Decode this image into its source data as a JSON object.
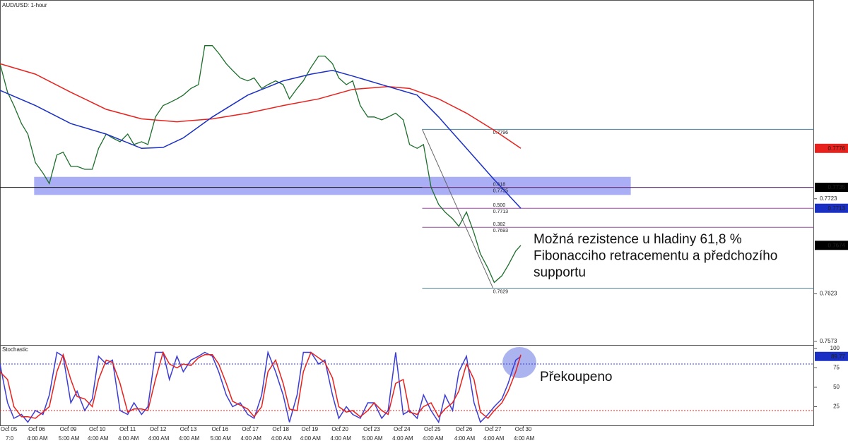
{
  "chart_data": [
    {
      "type": "line",
      "title": "AUD/USD: 1-hour",
      "xlim": [
        0,
        644
      ],
      "ylim": [
        0.757,
        0.7932
      ],
      "yticks": [
        0.7573,
        0.7623,
        0.7723
      ],
      "series": [
        {
          "color": "#1b6e2a",
          "x": [
            0,
            6,
            11,
            17,
            22,
            28,
            34,
            39,
            45,
            50,
            56,
            61,
            67,
            73,
            78,
            84,
            89,
            95,
            101,
            106,
            112,
            117,
            123,
            129,
            134,
            140,
            145,
            151,
            157,
            162,
            168,
            173,
            179,
            184,
            190,
            196,
            201,
            207,
            212,
            218,
            224,
            229,
            235,
            240,
            246,
            252,
            257,
            263,
            268,
            274,
            279,
            285,
            291,
            296,
            302,
            307,
            313,
            319,
            324,
            330,
            335,
            341,
            347,
            352,
            358,
            363,
            369,
            375,
            380,
            386,
            391,
            397,
            402,
            408,
            412
          ],
          "values": [
            0.7865,
            0.7835,
            0.7821,
            0.7802,
            0.7791,
            0.7761,
            0.775,
            0.7739,
            0.7769,
            0.7772,
            0.7757,
            0.7757,
            0.7754,
            0.7754,
            0.7776,
            0.7791,
            0.7787,
            0.7783,
            0.7791,
            0.778,
            0.7783,
            0.778,
            0.7809,
            0.7821,
            0.7824,
            0.7828,
            0.7832,
            0.7839,
            0.7843,
            0.7884,
            0.7884,
            0.7876,
            0.7865,
            0.7858,
            0.785,
            0.7847,
            0.785,
            0.7839,
            0.7843,
            0.7847,
            0.7843,
            0.7828,
            0.7839,
            0.7847,
            0.7861,
            0.7873,
            0.7873,
            0.7865,
            0.785,
            0.7843,
            0.7847,
            0.7821,
            0.7809,
            0.7809,
            0.7806,
            0.7809,
            0.7813,
            0.7806,
            0.778,
            0.7776,
            0.778,
            0.7735,
            0.7717,
            0.7709,
            0.7702,
            0.7694,
            0.7709,
            0.7687,
            0.7665,
            0.765,
            0.7635,
            0.7642,
            0.7653,
            0.7668,
            0.7674
          ]
        },
        {
          "color": "#e8211d",
          "x": [
            0,
            28,
            56,
            84,
            112,
            140,
            168,
            196,
            224,
            252,
            279,
            307,
            324,
            347,
            369,
            391,
            412
          ],
          "values": [
            0.7865,
            0.7854,
            0.7835,
            0.7817,
            0.7807,
            0.7804,
            0.7807,
            0.7813,
            0.7821,
            0.7828,
            0.7838,
            0.7841,
            0.7839,
            0.7828,
            0.7813,
            0.7795,
            0.7776
          ]
        },
        {
          "color": "#1a2fc4",
          "x": [
            0,
            28,
            56,
            84,
            112,
            129,
            145,
            168,
            196,
            224,
            246,
            263,
            279,
            307,
            330,
            347,
            369,
            391,
            412
          ],
          "values": [
            0.7837,
            0.7821,
            0.7802,
            0.7791,
            0.7776,
            0.7777,
            0.7787,
            0.7809,
            0.7832,
            0.7847,
            0.7854,
            0.7858,
            0.7852,
            0.7841,
            0.7832,
            0.7809,
            0.7776,
            0.7743,
            0.7713
          ]
        }
      ],
      "price_markers": [
        {
          "value": 0.7776,
          "color": "#e8211d"
        },
        {
          "value": 0.7735,
          "color": "#000000"
        },
        {
          "value": 0.7713,
          "color": "#1a2fc4"
        },
        {
          "value": 0.7674,
          "color": "#000000"
        }
      ],
      "hline": 0.7735,
      "zone": {
        "x": [
          27,
          499
        ],
        "y": [
          0.7727,
          0.7746
        ],
        "color": "#7b83f0"
      },
      "swing_x": [
        334,
        390
      ],
      "fib": [
        {
          "value": 0.7796,
          "color": "#4b7f9c"
        },
        {
          "ratio": "0.618",
          "value": 0.7735,
          "color": "#7a3b8a"
        },
        {
          "ratio": "0.500",
          "value": 0.7713,
          "color": "#9c4fa0"
        },
        {
          "ratio": "0.382",
          "value": 0.7693,
          "color": "#9c4fa0"
        },
        {
          "value": 0.7629,
          "color": "#4b7f9c"
        }
      ],
      "annotation": [
        "Možná rezistence u hladiny 61,8 %",
        "Fibonacciho retracementu a předchozího",
        "supportu"
      ]
    },
    {
      "type": "line",
      "title": "Stochastic",
      "xlim": [
        0,
        644
      ],
      "ylim": [
        0,
        100
      ],
      "yticks": [
        25,
        50,
        75,
        100
      ],
      "levels": [
        {
          "value": 80,
          "color": "#3b3bd6"
        },
        {
          "value": 20,
          "color": "#e8211d"
        }
      ],
      "series": [
        {
          "color": "#3b3bd6",
          "x": [
            0,
            6,
            11,
            17,
            22,
            28,
            34,
            39,
            45,
            50,
            56,
            61,
            67,
            73,
            78,
            84,
            89,
            95,
            101,
            106,
            112,
            117,
            123,
            129,
            134,
            140,
            145,
            151,
            157,
            162,
            168,
            173,
            179,
            184,
            190,
            196,
            201,
            207,
            212,
            218,
            224,
            229,
            235,
            240,
            246,
            252,
            257,
            263,
            268,
            274,
            279,
            285,
            291,
            296,
            302,
            307,
            313,
            319,
            324,
            330,
            335,
            341,
            347,
            352,
            358,
            363,
            369,
            375,
            380,
            386,
            391,
            397,
            402,
            408,
            412
          ],
          "values": [
            80,
            30,
            10,
            15,
            5,
            20,
            15,
            40,
            95,
            90,
            30,
            45,
            20,
            35,
            90,
            80,
            85,
            20,
            15,
            30,
            15,
            25,
            95,
            95,
            60,
            90,
            70,
            85,
            90,
            95,
            90,
            70,
            40,
            25,
            30,
            15,
            10,
            40,
            95,
            70,
            40,
            5,
            40,
            95,
            95,
            80,
            85,
            40,
            10,
            25,
            15,
            10,
            30,
            30,
            10,
            20,
            95,
            15,
            20,
            10,
            40,
            20,
            5,
            40,
            20,
            70,
            90,
            30,
            5,
            15,
            25,
            35,
            55,
            85,
            89.77
          ]
        },
        {
          "color": "#e8211d",
          "x": [
            0,
            6,
            11,
            17,
            22,
            28,
            34,
            39,
            45,
            50,
            56,
            61,
            67,
            73,
            78,
            84,
            89,
            95,
            101,
            106,
            112,
            117,
            123,
            129,
            134,
            140,
            145,
            151,
            157,
            162,
            168,
            173,
            179,
            184,
            190,
            196,
            201,
            207,
            212,
            218,
            224,
            229,
            235,
            240,
            246,
            252,
            257,
            263,
            268,
            274,
            279,
            285,
            291,
            296,
            302,
            307,
            313,
            319,
            324,
            330,
            335,
            341,
            347,
            352,
            358,
            363,
            369,
            375,
            380,
            386,
            391,
            397,
            402,
            408,
            412
          ],
          "values": [
            70,
            60,
            25,
            12,
            12,
            10,
            18,
            25,
            70,
            92,
            60,
            38,
            35,
            25,
            60,
            85,
            82,
            55,
            18,
            22,
            22,
            20,
            60,
            95,
            80,
            75,
            80,
            78,
            88,
            92,
            92,
            80,
            55,
            32,
            27,
            22,
            12,
            25,
            70,
            85,
            55,
            22,
            20,
            70,
            95,
            88,
            82,
            62,
            25,
            18,
            20,
            12,
            20,
            30,
            20,
            15,
            55,
            60,
            18,
            15,
            25,
            30,
            12,
            22,
            30,
            45,
            80,
            60,
            18,
            10,
            20,
            30,
            45,
            70,
            92
          ]
        }
      ],
      "value_marker": {
        "series": 0,
        "index": 74,
        "color": "#1a2fc4"
      },
      "annotation": "Překoupeno",
      "xticks": [
        {
          "value": 7,
          "label": "Oct 05"
        },
        {
          "value": 29,
          "label": "Oct 06"
        },
        {
          "value": 54,
          "label": "Oct 09"
        },
        {
          "value": 77,
          "label": "Oct 10"
        },
        {
          "value": 101,
          "label": "Oct 11"
        },
        {
          "value": 125,
          "label": "Oct 12"
        },
        {
          "value": 149,
          "label": "Oct 13"
        },
        {
          "value": 174,
          "label": "Oct 16"
        },
        {
          "value": 198,
          "label": "Oct 17"
        },
        {
          "value": 222,
          "label": "Oct 18"
        },
        {
          "value": 245,
          "label": "Oct 19"
        },
        {
          "value": 269,
          "label": "Oct 20"
        },
        {
          "value": 294,
          "label": "Oct 23"
        },
        {
          "value": 318,
          "label": "Oct 24"
        },
        {
          "value": 342,
          "label": "Oct 25"
        },
        {
          "value": 367,
          "label": "Oct 26"
        },
        {
          "value": 390,
          "label": "Oct 27"
        },
        {
          "value": 414,
          "label": "Oct 30"
        }
      ],
      "x2ticks": [
        {
          "value": 7,
          "label": "7:0"
        },
        {
          "value": 29,
          "label": "4:00 AM"
        },
        {
          "value": 54,
          "label": "5:00 AM"
        },
        {
          "value": 77,
          "label": "4:00 AM"
        },
        {
          "value": 101,
          "label": "4:00 AM"
        },
        {
          "value": 125,
          "label": "4:00 AM"
        },
        {
          "value": 149,
          "label": "4:00 AM"
        },
        {
          "value": 174,
          "label": "5:00 AM"
        },
        {
          "value": 198,
          "label": "4:00 AM"
        },
        {
          "value": 222,
          "label": "4:00 AM"
        },
        {
          "value": 245,
          "label": "4:00 AM"
        },
        {
          "value": 269,
          "label": "4:00 AM"
        },
        {
          "value": 294,
          "label": "5:00 AM"
        },
        {
          "value": 318,
          "label": "4:00 AM"
        },
        {
          "value": 342,
          "label": "4:00 AM"
        },
        {
          "value": 367,
          "label": "4:00 AM"
        },
        {
          "value": 390,
          "label": "4:00 AM"
        },
        {
          "value": 414,
          "label": "4:00 AM"
        }
      ]
    }
  ]
}
